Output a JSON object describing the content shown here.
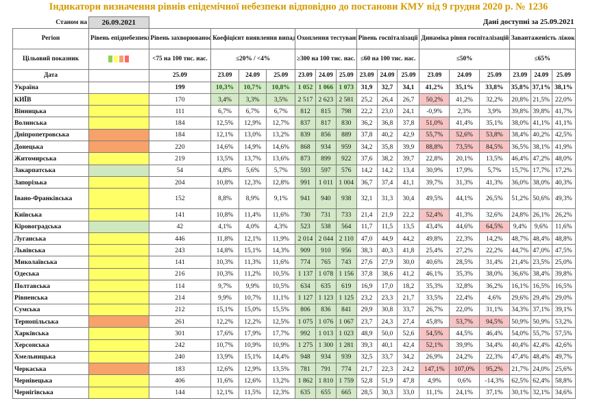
{
  "title": "Індикатори визначення рівнів епідемічної небезпеки відповідно до постанови КМУ від 9 грудня 2020 р. № 1236",
  "as_of_label": "Станом на",
  "as_of_date": "26.09.2021",
  "data_available": "Дані доступні за 25.09.2021",
  "headers": {
    "region": "Регіон",
    "level": "Рівень епіднебезпеки",
    "morbidity": "Рівень захворюваності",
    "detection": "Коефіцієнт виявлення випадків інфікування",
    "testing": "Охоплення тестуванням",
    "hospitalization": "Рівень госпіталізації",
    "dynamics": "Динаміка рівня госпіталізацій",
    "oxygen": "Завантаженість ліжок з киснем"
  },
  "targets": {
    "label": "Цільовий показник",
    "morbidity": "<75 на 100 тис. нас.",
    "detection": "≤20% / <4%",
    "testing": "≥300 на 100 тис. нас.",
    "hospitalization": "≤60 на 100 тис. нас.",
    "dynamics": "≤50%",
    "oxygen": "≤65%"
  },
  "legend_colors": [
    "#92d050",
    "#ffff66",
    "#f7a26a",
    "#ff6666"
  ],
  "date_label": "Дата",
  "dates": {
    "morbidity": "25.09",
    "triple": [
      "23.09",
      "24.09",
      "25.09"
    ]
  },
  "rows": [
    {
      "name": "Україна",
      "level": "",
      "m": "199",
      "d": [
        "10,3%",
        "10,7%",
        "10,8%"
      ],
      "t": [
        "1 052",
        "1 066",
        "1 073"
      ],
      "h": [
        "31,9",
        "32,7",
        "34,1"
      ],
      "g": [
        "41,2%",
        "35,1%",
        "33,8%"
      ],
      "o": [
        "35,8%",
        "37,1%",
        "38,1%"
      ]
    },
    {
      "name": "КИЇВ",
      "level": "yel",
      "m": "170",
      "d": [
        "3,4%",
        "3,3%",
        "3,5%"
      ],
      "t": [
        "2 517",
        "2 623",
        "2 581"
      ],
      "h": [
        "25,2",
        "26,4",
        "26,7"
      ],
      "g": [
        "50,2%",
        "41,2%",
        "32,2%"
      ],
      "o": [
        "20,8%",
        "21,5%",
        "22,0%"
      ]
    },
    {
      "name": "Вінницька",
      "level": "yel",
      "m": "111",
      "d": [
        "6,7%",
        "6,7%",
        "6,7%"
      ],
      "t": [
        "812",
        "815",
        "798"
      ],
      "h": [
        "22,2",
        "23,0",
        "24,1"
      ],
      "g": [
        "-0,9%",
        "2,3%",
        "3,9%"
      ],
      "o": [
        "39,8%",
        "39,8%",
        "41,7%"
      ]
    },
    {
      "name": "Волинська",
      "level": "yel",
      "m": "184",
      "d": [
        "12,5%",
        "12,9%",
        "12,7%"
      ],
      "t": [
        "837",
        "817",
        "830"
      ],
      "h": [
        "36,2",
        "36,8",
        "37,8"
      ],
      "g": [
        "51,0%",
        "41,4%",
        "35,1%"
      ],
      "o": [
        "38,0%",
        "41,1%",
        "41,1%"
      ]
    },
    {
      "name": "Дніпропетровська",
      "level": "org",
      "m": "184",
      "d": [
        "12,1%",
        "13,0%",
        "13,2%"
      ],
      "t": [
        "839",
        "856",
        "889"
      ],
      "h": [
        "37,8",
        "40,2",
        "42,9"
      ],
      "g": [
        "55,7%",
        "52,6%",
        "53,8%"
      ],
      "o": [
        "38,4%",
        "40,2%",
        "42,5%"
      ]
    },
    {
      "name": "Донецька",
      "level": "org",
      "m": "220",
      "d": [
        "14,6%",
        "14,9%",
        "14,6%"
      ],
      "t": [
        "868",
        "934",
        "959"
      ],
      "h": [
        "34,2",
        "35,8",
        "39,9"
      ],
      "g": [
        "88,8%",
        "73,5%",
        "84,5%"
      ],
      "o": [
        "36,5%",
        "38,1%",
        "41,9%"
      ]
    },
    {
      "name": "Житомирська",
      "level": "yel",
      "m": "219",
      "d": [
        "13,5%",
        "13,7%",
        "13,6%"
      ],
      "t": [
        "873",
        "899",
        "922"
      ],
      "h": [
        "37,6",
        "38,2",
        "39,7"
      ],
      "g": [
        "22,8%",
        "20,1%",
        "13,5%"
      ],
      "o": [
        "46,4%",
        "47,2%",
        "48,0%"
      ]
    },
    {
      "name": "Закарпатська",
      "level": "grn",
      "m": "54",
      "d": [
        "4,8%",
        "5,6%",
        "5,7%"
      ],
      "t": [
        "593",
        "597",
        "576"
      ],
      "h": [
        "14,2",
        "14,2",
        "13,4"
      ],
      "g": [
        "30,9%",
        "17,9%",
        "5,7%"
      ],
      "o": [
        "15,7%",
        "17,7%",
        "17,2%"
      ]
    },
    {
      "name": "Запорізька",
      "level": "yel",
      "m": "204",
      "d": [
        "10,8%",
        "12,3%",
        "12,8%"
      ],
      "t": [
        "991",
        "1 011",
        "1 004"
      ],
      "h": [
        "36,7",
        "37,4",
        "41,1"
      ],
      "g": [
        "39,7%",
        "31,3%",
        "41,3%"
      ],
      "o": [
        "36,0%",
        "38,0%",
        "40,3%"
      ]
    },
    {
      "name": "Івано-Франківська",
      "level": "yel",
      "m": "152",
      "d": [
        "8,8%",
        "8,9%",
        "9,1%"
      ],
      "t": [
        "941",
        "940",
        "938"
      ],
      "h": [
        "32,1",
        "31,3",
        "30,4"
      ],
      "g": [
        "49,5%",
        "44,1%",
        "26,5%"
      ],
      "o": [
        "51,2%",
        "50,6%",
        "49,3%"
      ],
      "tall": true
    },
    {
      "name": "Київська",
      "level": "yel",
      "m": "141",
      "d": [
        "10,8%",
        "11,4%",
        "11,6%"
      ],
      "t": [
        "730",
        "731",
        "733"
      ],
      "h": [
        "21,4",
        "21,9",
        "22,2"
      ],
      "g": [
        "52,4%",
        "41,3%",
        "32,6%"
      ],
      "o": [
        "24,8%",
        "26,1%",
        "26,2%"
      ]
    },
    {
      "name": "Кіровоградська",
      "level": "grn",
      "m": "42",
      "d": [
        "4,1%",
        "4,0%",
        "4,3%"
      ],
      "t": [
        "523",
        "538",
        "564"
      ],
      "h": [
        "11,7",
        "11,5",
        "13,5"
      ],
      "g": [
        "43,4%",
        "44,6%",
        "64,5%"
      ],
      "o": [
        "9,4%",
        "9,6%",
        "11,6%"
      ]
    },
    {
      "name": "Луганська",
      "level": "yel",
      "m": "446",
      "d": [
        "11,8%",
        "12,1%",
        "11,9%"
      ],
      "t": [
        "2 014",
        "2 044",
        "2 110"
      ],
      "h": [
        "47,0",
        "44,9",
        "44,2"
      ],
      "g": [
        "49,8%",
        "22,3%",
        "14,2%"
      ],
      "o": [
        "48,7%",
        "48,4%",
        "48,8%"
      ]
    },
    {
      "name": "Львівська",
      "level": "yel",
      "m": "243",
      "d": [
        "14,8%",
        "15,1%",
        "14,3%"
      ],
      "t": [
        "909",
        "910",
        "956"
      ],
      "h": [
        "38,3",
        "40,3",
        "41,8"
      ],
      "g": [
        "25,4%",
        "27,2%",
        "22,2%"
      ],
      "o": [
        "44,7%",
        "47,0%",
        "47,5%"
      ]
    },
    {
      "name": "Миколаївська",
      "level": "yel",
      "m": "141",
      "d": [
        "10,3%",
        "11,3%",
        "11,6%"
      ],
      "t": [
        "774",
        "765",
        "743"
      ],
      "h": [
        "27,6",
        "27,9",
        "30,0"
      ],
      "g": [
        "40,6%",
        "28,5%",
        "31,4%"
      ],
      "o": [
        "21,4%",
        "23,5%",
        "25,0%"
      ]
    },
    {
      "name": "Одеська",
      "level": "yel",
      "m": "216",
      "d": [
        "10,3%",
        "11,2%",
        "10,5%"
      ],
      "t": [
        "1 137",
        "1 078",
        "1 156"
      ],
      "h": [
        "37,8",
        "38,6",
        "41,2"
      ],
      "g": [
        "46,1%",
        "35,3%",
        "38,0%"
      ],
      "o": [
        "36,6%",
        "38,4%",
        "39,8%"
      ]
    },
    {
      "name": "Полтавська",
      "level": "yel",
      "m": "114",
      "d": [
        "9,7%",
        "9,9%",
        "10,5%"
      ],
      "t": [
        "634",
        "635",
        "619"
      ],
      "h": [
        "16,9",
        "17,0",
        "18,2"
      ],
      "g": [
        "35,3%",
        "32,8%",
        "36,2%"
      ],
      "o": [
        "16,1%",
        "16,5%",
        "16,5%"
      ]
    },
    {
      "name": "Рівненська",
      "level": "yel",
      "m": "214",
      "d": [
        "9,9%",
        "10,7%",
        "11,1%"
      ],
      "t": [
        "1 127",
        "1 123",
        "1 125"
      ],
      "h": [
        "23,2",
        "23,3",
        "21,7"
      ],
      "g": [
        "33,5%",
        "22,4%",
        "4,6%"
      ],
      "o": [
        "29,6%",
        "29,4%",
        "29,0%"
      ]
    },
    {
      "name": "Сумська",
      "level": "yel",
      "m": "212",
      "d": [
        "15,1%",
        "15,0%",
        "15,5%"
      ],
      "t": [
        "806",
        "836",
        "841"
      ],
      "h": [
        "29,9",
        "30,8",
        "33,7"
      ],
      "g": [
        "26,7%",
        "22,0%",
        "31,1%"
      ],
      "o": [
        "34,3%",
        "37,1%",
        "39,1%"
      ]
    },
    {
      "name": "Тернопільська",
      "level": "org",
      "m": "261",
      "d": [
        "12,2%",
        "12,2%",
        "12,5%"
      ],
      "t": [
        "1 075",
        "1 076",
        "1 067"
      ],
      "h": [
        "23,7",
        "24,3",
        "27,4"
      ],
      "g": [
        "45,8%",
        "53,7%",
        "94,5%"
      ],
      "o": [
        "50,9%",
        "50,9%",
        "53,2%"
      ]
    },
    {
      "name": "Харківська",
      "level": "yel",
      "m": "301",
      "d": [
        "17,6%",
        "17,9%",
        "17,7%"
      ],
      "t": [
        "992",
        "1 013",
        "1 023"
      ],
      "h": [
        "48,9",
        "50,0",
        "52,6"
      ],
      "g": [
        "54,5%",
        "44,5%",
        "46,4%"
      ],
      "o": [
        "54,0%",
        "55,7%",
        "57,5%"
      ]
    },
    {
      "name": "Херсонська",
      "level": "yel",
      "m": "242",
      "d": [
        "10,7%",
        "10,9%",
        "10,9%"
      ],
      "t": [
        "1 275",
        "1 300",
        "1 281"
      ],
      "h": [
        "39,3",
        "40,1",
        "42,4"
      ],
      "g": [
        "52,1%",
        "39,9%",
        "34,4%"
      ],
      "o": [
        "40,4%",
        "42,4%",
        "42,6%"
      ]
    },
    {
      "name": "Хмельницька",
      "level": "yel",
      "m": "240",
      "d": [
        "13,9%",
        "15,1%",
        "14,4%"
      ],
      "t": [
        "948",
        "934",
        "939"
      ],
      "h": [
        "32,5",
        "33,7",
        "34,2"
      ],
      "g": [
        "26,9%",
        "24,2%",
        "22,3%"
      ],
      "o": [
        "47,4%",
        "48,4%",
        "49,7%"
      ]
    },
    {
      "name": "Черкаська",
      "level": "org",
      "m": "183",
      "d": [
        "12,6%",
        "12,9%",
        "13,5%"
      ],
      "t": [
        "781",
        "791",
        "774"
      ],
      "h": [
        "21,7",
        "22,3",
        "24,2"
      ],
      "g": [
        "147,1%",
        "107,0%",
        "95,2%"
      ],
      "o": [
        "21,7%",
        "24,0%",
        "25,6%"
      ]
    },
    {
      "name": "Чернівецька",
      "level": "yel",
      "m": "406",
      "d": [
        "11,6%",
        "12,6%",
        "13,2%"
      ],
      "t": [
        "1 862",
        "1 810",
        "1 759"
      ],
      "h": [
        "52,8",
        "51,9",
        "47,8"
      ],
      "g": [
        "4,9%",
        "0,6%",
        "-14,3%"
      ],
      "o": [
        "62,5%",
        "62,4%",
        "58,8%"
      ]
    },
    {
      "name": "Чернігівська",
      "level": "yel",
      "m": "144",
      "d": [
        "12,1%",
        "11,5%",
        "12,3%"
      ],
      "t": [
        "635",
        "655",
        "665"
      ],
      "h": [
        "28,5",
        "30,3",
        "33,0"
      ],
      "g": [
        "11,1%",
        "24,1%",
        "37,1%"
      ],
      "o": [
        "30,1%",
        "32,1%",
        "34,6%"
      ]
    }
  ],
  "highlights": {
    "detection_green_rows": [
      0,
      1
    ],
    "dynamics_pink": {
      "1": [
        0
      ],
      "3": [
        0
      ],
      "4": [
        0,
        1,
        2
      ],
      "5": [
        0,
        1,
        2
      ],
      "10": [
        0
      ],
      "11": [
        2
      ],
      "19": [
        1,
        2
      ],
      "20": [
        0
      ],
      "21": [
        0
      ],
      "23": [
        0,
        1,
        2
      ]
    }
  }
}
